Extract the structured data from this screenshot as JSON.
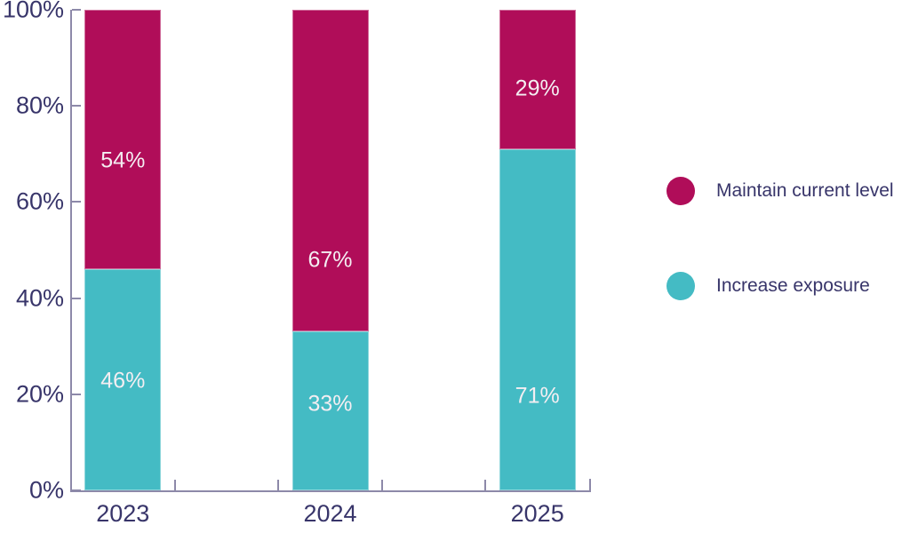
{
  "chart_data": {
    "type": "bar",
    "stacked": true,
    "title": "",
    "categories": [
      "2023",
      "2024",
      "2025"
    ],
    "series": [
      {
        "name": "Maintain current level",
        "color": "#B00D59",
        "values": [
          54,
          67,
          29
        ]
      },
      {
        "name": "Increase exposure",
        "color": "#44BBC4",
        "values": [
          46,
          33,
          71
        ]
      }
    ],
    "value_suffix": "%",
    "bar_labels": {
      "maintain_current_level": [
        "54%",
        "67%",
        "29%"
      ],
      "increase_exposure": [
        "46%",
        "33%",
        "71%"
      ]
    },
    "xlabel": "",
    "ylabel": "",
    "ylim": [
      0,
      100
    ],
    "yticks": [
      "0%",
      "20%",
      "40%",
      "60%",
      "80%",
      "100%"
    ],
    "grid": false,
    "legend_position": "right",
    "colors": {
      "axis": "#8D89A9",
      "tick_text": "#38356A",
      "bar_label_text": "#F4EEF2",
      "background": "#FFFFFF"
    }
  }
}
